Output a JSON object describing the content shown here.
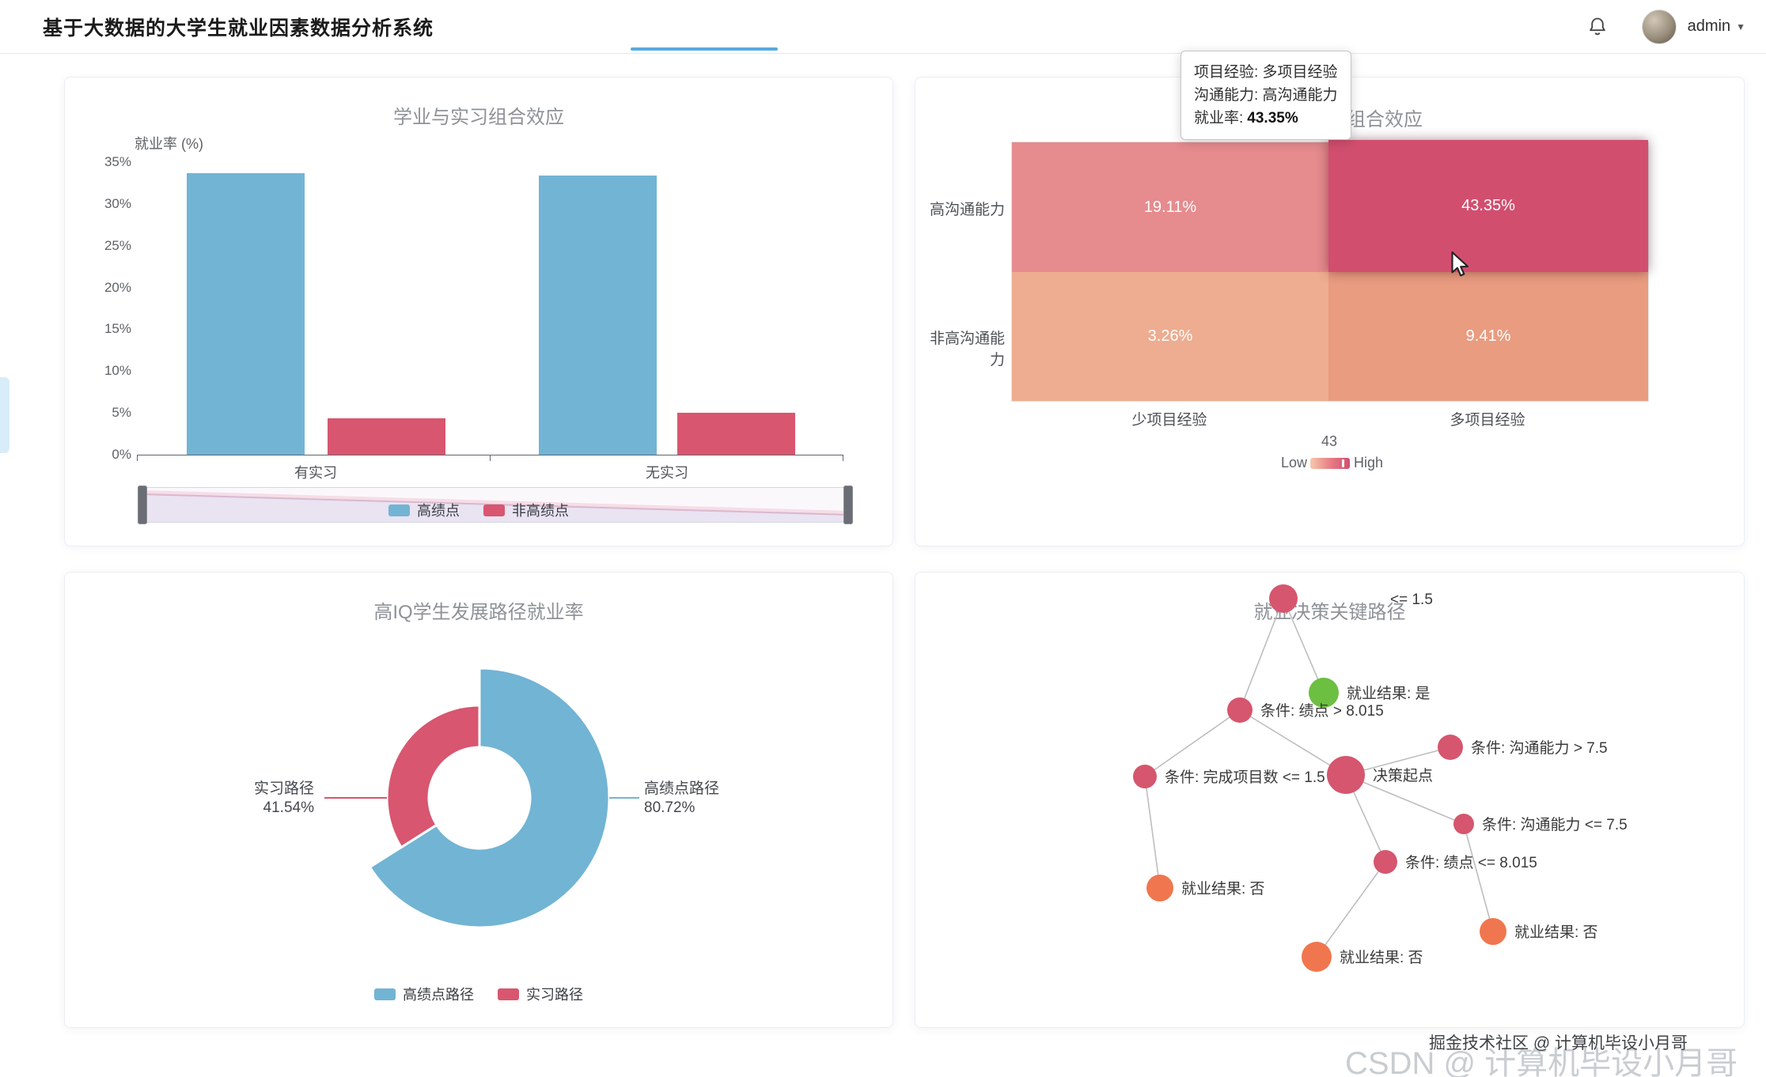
{
  "header": {
    "title": "基于大数据的大学生就业因素数据分析系统",
    "user": "admin",
    "caret": "▼"
  },
  "colors": {
    "tab_accent": "#57aae0",
    "sliver": "#d9ecf9",
    "edge": "#b3b3b3"
  },
  "tooltip": {
    "line1": "项目经验: 多项目经验",
    "line2": "沟通能力: 高沟通能力",
    "line3_label": "就业率:",
    "line3_value": "43.35%"
  },
  "panels": {
    "bar": {
      "title": "学业与实习组合效应",
      "y_axis_name": "就业率 (%)",
      "y_ticks": [
        "35%",
        "30%",
        "25%",
        "20%",
        "15%",
        "10%",
        "5%",
        "0%"
      ],
      "x_labels": [
        "有实习",
        "无实习"
      ],
      "chart_data": {
        "type": "bar",
        "categories": [
          "有实习",
          "无实习"
        ],
        "series": [
          {
            "name": "高绩点",
            "color": "#72b4d4",
            "values": [
              33.7,
              33.4
            ]
          },
          {
            "name": "非高绩点",
            "color": "#d8566f",
            "values": [
              4.4,
              5.0
            ]
          }
        ],
        "ylabel": "就业率 (%)",
        "ylim": [
          0,
          35
        ],
        "legend_position": "bottom",
        "grid": false
      }
    },
    "heatmap": {
      "title_visible": "组合效应",
      "row_labels": [
        "高沟通能力",
        "非高沟通能力"
      ],
      "col_labels": [
        "少项目经验",
        "多项目经验"
      ],
      "cells": [
        {
          "row": "高沟通能力",
          "col": "少项目经验",
          "label": "19.11%",
          "value": 19.11,
          "color": "#e68b8e"
        },
        {
          "row": "高沟通能力",
          "col": "多项目经验",
          "label": "43.35%",
          "value": 43.35,
          "color": "#d24e6f",
          "state": "hovered"
        },
        {
          "row": "非高沟通能力",
          "col": "少项目经验",
          "label": "3.26%",
          "value": 3.26,
          "color": "#eeac90"
        },
        {
          "row": "非高沟通能力",
          "col": "多项目经验",
          "label": "9.41%",
          "value": 9.41,
          "color": "#e99c80"
        }
      ],
      "visualmap": {
        "value": "43",
        "low": "Low",
        "high": "High"
      },
      "chart_data": {
        "type": "heatmap",
        "x": [
          "少项目经验",
          "多项目经验"
        ],
        "y": [
          "高沟通能力",
          "非高沟通能力"
        ],
        "values": [
          [
            19.11,
            43.35
          ],
          [
            3.26,
            9.41
          ]
        ],
        "unit": "%"
      }
    },
    "donut": {
      "title": "高IQ学生发展路径就业率",
      "slices": [
        {
          "name": "高绩点路径",
          "value": "80.72%",
          "color": "#72b4d4"
        },
        {
          "name": "实习路径",
          "value": "41.54%",
          "color": "#d8566f"
        }
      ],
      "chart_data": {
        "type": "pie",
        "labels": [
          "高绩点路径",
          "实习路径"
        ],
        "values": [
          80.72,
          41.54
        ],
        "unit": "%",
        "legend_position": "bottom"
      }
    },
    "graph": {
      "title": "就业决策关键路径",
      "nodes": [
        {
          "label": "<= 1.5",
          "color": "#d5566e"
        },
        {
          "label": "条件: 绩点 > 8.015",
          "color": "#d5566e"
        },
        {
          "label": "就业结果: 是",
          "color": "#6cbf40"
        },
        {
          "label": "条件: 完成项目数 <= 1.5",
          "color": "#d5566e"
        },
        {
          "label": "决策起点",
          "color": "#d5566e"
        },
        {
          "label": "条件: 沟通能力 > 7.5",
          "color": "#d5566e"
        },
        {
          "label": "条件: 沟通能力 <= 7.5",
          "color": "#d5566e"
        },
        {
          "label": "条件: 绩点 <= 8.015",
          "color": "#d5566e"
        },
        {
          "label": "就业结果: 否",
          "color": "#f0764f"
        },
        {
          "label": "就业结果: 否",
          "color": "#f0764f"
        },
        {
          "label": "就业结果: 否",
          "color": "#f0764f"
        }
      ],
      "edges": [
        [
          0,
          1
        ],
        [
          0,
          2
        ],
        [
          1,
          3
        ],
        [
          1,
          4
        ],
        [
          4,
          5
        ],
        [
          4,
          6
        ],
        [
          4,
          7
        ],
        [
          3,
          8
        ],
        [
          7,
          9
        ],
        [
          6,
          10
        ]
      ],
      "chart_data": {
        "type": "graph",
        "nodes": [
          "<= 1.5",
          "条件: 绩点 > 8.015",
          "就业结果: 是",
          "条件: 完成项目数 <= 1.5",
          "决策起点",
          "条件: 沟通能力 > 7.5",
          "条件: 沟通能力 <= 7.5",
          "条件: 绩点 <= 8.015",
          "就业结果: 否",
          "就业结果: 否",
          "就业结果: 否"
        ],
        "edges": [
          [
            0,
            1
          ],
          [
            0,
            2
          ],
          [
            1,
            3
          ],
          [
            1,
            4
          ],
          [
            4,
            5
          ],
          [
            4,
            6
          ],
          [
            4,
            7
          ],
          [
            3,
            8
          ],
          [
            7,
            9
          ],
          [
            6,
            10
          ]
        ]
      }
    }
  },
  "watermarks": {
    "light": "CSDN @ 计算机毕设小月哥",
    "dark": "掘金技术社区 @ 计算机毕设小月哥"
  }
}
